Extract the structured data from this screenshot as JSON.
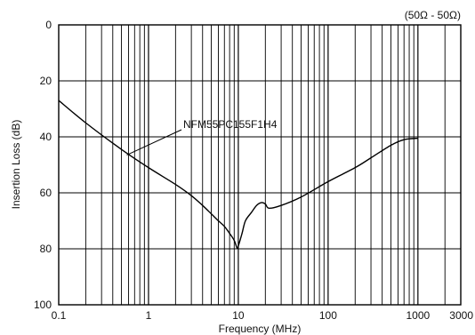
{
  "chart_data": {
    "type": "line",
    "xscale": "log",
    "xlabel": "Frequency (MHz)",
    "ylabel": "Insertion Loss (dB)",
    "xlim": [
      0.1,
      3000
    ],
    "ylim": [
      0,
      100
    ],
    "y_inverted": true,
    "x_ticks": [
      0.1,
      1,
      10,
      100,
      1000,
      3000
    ],
    "x_tick_labels": [
      "0.1",
      "1",
      "10",
      "100",
      "1000",
      "3000"
    ],
    "y_ticks": [
      0,
      20,
      40,
      60,
      80,
      100
    ],
    "y_tick_labels": [
      "0",
      "20",
      "40",
      "60",
      "80",
      "100"
    ],
    "grid": true,
    "annotation": "(50Ω - 50Ω)",
    "series": [
      {
        "name": "NFM55PC155F1H4",
        "x": [
          0.1,
          0.2,
          0.5,
          1,
          2,
          3,
          4,
          5,
          6,
          7,
          8,
          9,
          9.7,
          10,
          11,
          12,
          14,
          16,
          18,
          20,
          22,
          30,
          50,
          100,
          200,
          300,
          500,
          700,
          1000
        ],
        "y": [
          27,
          35,
          44.5,
          51,
          57,
          61,
          64.5,
          67.5,
          70,
          72,
          74.5,
          77,
          79.8,
          79,
          74.5,
          70,
          67,
          64.5,
          63.5,
          64,
          65.5,
          64.5,
          61.5,
          56,
          51,
          47.5,
          43,
          41,
          40.5
        ]
      }
    ],
    "series_label_text": "NFM55PC155F1H4"
  }
}
